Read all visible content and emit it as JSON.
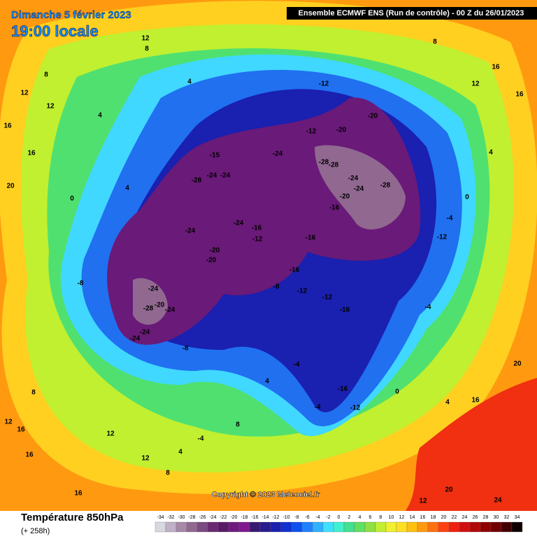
{
  "header": {
    "date": "Dimanche 5 février 2023",
    "time": "19:00 locale",
    "source": "Ensemble ECMWF ENS  (Run de contrôle)  -  00 Z du 26/01/2023"
  },
  "footer": {
    "title": "Température 850hPa",
    "lead": "(+ 258h)",
    "copyright": "Copyright © 2023 Meteociel.fr"
  },
  "legend": {
    "values": [
      -34,
      -32,
      -30,
      -28,
      -26,
      -24,
      -22,
      -20,
      -18,
      -16,
      -14,
      -12,
      -10,
      -8,
      -6,
      -4,
      -2,
      0,
      2,
      4,
      6,
      8,
      10,
      12,
      14,
      16,
      18,
      20,
      22,
      24,
      26,
      28,
      30,
      32,
      34
    ],
    "colors": [
      "#d8d8e0",
      "#c0b0c8",
      "#a888a8",
      "#906890",
      "#7a4a80",
      "#6a2a70",
      "#5a1a68",
      "#701a80",
      "#801890",
      "#3a1a70",
      "#2a1a90",
      "#1a20b0",
      "#1030d0",
      "#1050f0",
      "#2080ff",
      "#30b0ff",
      "#40e0ff",
      "#40f0d0",
      "#40e090",
      "#60e060",
      "#90e040",
      "#c0f030",
      "#f0f030",
      "#ffe020",
      "#ffc010",
      "#ff9a10",
      "#ff7010",
      "#ff4010",
      "#f02010",
      "#d01010",
      "#b00808",
      "#900000",
      "#700000",
      "#400000",
      "#100000"
    ]
  },
  "map_labels": [
    -12,
    -20,
    -12,
    -20,
    -15,
    -24,
    -28,
    -28,
    -24,
    -24,
    -28,
    -20,
    -16,
    -24,
    -24,
    -28,
    -24,
    -24,
    -16,
    -12,
    -16,
    -12,
    -4,
    -20,
    -20,
    -16,
    -8,
    -12,
    -12,
    -16,
    -24,
    -28,
    -20,
    -24,
    -24,
    -24,
    -8,
    -8,
    -16,
    -12,
    -4,
    -4,
    4,
    4,
    8,
    12,
    12,
    16,
    16,
    20,
    0,
    4,
    8,
    12,
    16,
    16,
    12,
    8,
    4,
    0,
    -4,
    0,
    4,
    20,
    16,
    12,
    20,
    24,
    8,
    12,
    4,
    -4,
    8,
    4,
    16,
    12,
    16,
    12,
    16,
    8
  ]
}
